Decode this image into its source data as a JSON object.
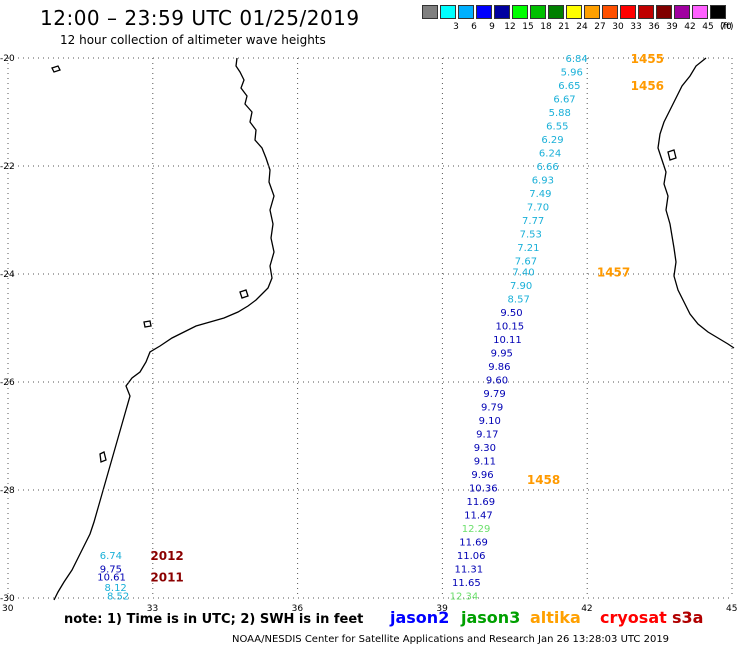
{
  "title": "12:00 – 23:59 UTC 01/25/2019",
  "subtitle": "12 hour collection of altimeter wave heights",
  "scale": {
    "labels": [
      "",
      "3",
      "6",
      "9",
      "12",
      "15",
      "18",
      "21",
      "24",
      "27",
      "30",
      "33",
      "36",
      "39",
      "42",
      "45",
      "70"
    ],
    "colors": [
      "#808080",
      "#00ffff",
      "#00b0ff",
      "#0000ff",
      "#0000a0",
      "#00ff00",
      "#00c000",
      "#008000",
      "#ffff00",
      "#ffa000",
      "#ff5000",
      "#ff0000",
      "#c00000",
      "#800000",
      "#a000a0",
      "#ff60ff",
      "#000000"
    ],
    "unit": "(ft)"
  },
  "axes": {
    "lon_labels": [
      "30",
      "33",
      "36",
      "39",
      "42",
      "45"
    ],
    "lat_labels": [
      "-20",
      "-22",
      "-24",
      "-26",
      "-28",
      "-30"
    ]
  },
  "footer": {
    "note": "note: 1) Time is in UTC; 2) SWH is in feet",
    "sat1": "jason2",
    "sat2": "jason3",
    "sat3": "altika",
    "sat4": "cryosat",
    "sat5": "s3a",
    "credit": "NOAA/NESDIS Center for Satellite Applications and Research",
    "stamp": "Jan 26 13:28:03 UTC 2019"
  },
  "colors": {
    "light_blue": "#1ab0d8",
    "dark_blue": "#0000b4",
    "green": "#6ce06c",
    "orange": "#ff9a00",
    "dark_red": "#8b0000",
    "grid": "#555555"
  },
  "track_labels": [
    {
      "text": "1455",
      "lon": 42.9,
      "lat": -20.0,
      "color": "orange"
    },
    {
      "text": "1456",
      "lon": 42.9,
      "lat": -20.5,
      "color": "orange"
    },
    {
      "text": "1457",
      "lon": 42.2,
      "lat": -23.95,
      "color": "orange"
    },
    {
      "text": "1458",
      "lon": 40.75,
      "lat": -27.8,
      "color": "orange"
    },
    {
      "text": "2012",
      "lon": 32.95,
      "lat": -29.2,
      "color": "dark_red"
    },
    {
      "text": "2011",
      "lon": 32.95,
      "lat": -29.6,
      "color": "dark_red"
    }
  ],
  "measurements": [
    {
      "v": "6.84",
      "lon": 41.55,
      "lat": -20.0,
      "color": "light_blue"
    },
    {
      "v": "5.96",
      "lon": 41.45,
      "lat": -20.25,
      "color": "light_blue"
    },
    {
      "v": "6.65",
      "lon": 41.4,
      "lat": -20.5,
      "color": "light_blue"
    },
    {
      "v": "6.67",
      "lon": 41.3,
      "lat": -20.75,
      "color": "light_blue"
    },
    {
      "v": "5.88",
      "lon": 41.2,
      "lat": -21.0,
      "color": "light_blue"
    },
    {
      "v": "6.55",
      "lon": 41.15,
      "lat": -21.25,
      "color": "light_blue"
    },
    {
      "v": "6.29",
      "lon": 41.05,
      "lat": -21.5,
      "color": "light_blue"
    },
    {
      "v": "6.24",
      "lon": 41.0,
      "lat": -21.75,
      "color": "light_blue"
    },
    {
      "v": "6.66",
      "lon": 40.95,
      "lat": -22.0,
      "color": "light_blue"
    },
    {
      "v": "6.93",
      "lon": 40.85,
      "lat": -22.25,
      "color": "light_blue"
    },
    {
      "v": "7.49",
      "lon": 40.8,
      "lat": -22.5,
      "color": "light_blue"
    },
    {
      "v": "7.70",
      "lon": 40.75,
      "lat": -22.75,
      "color": "light_blue"
    },
    {
      "v": "7.77",
      "lon": 40.65,
      "lat": -23.0,
      "color": "light_blue"
    },
    {
      "v": "7.53",
      "lon": 40.6,
      "lat": -23.25,
      "color": "light_blue"
    },
    {
      "v": "7.21",
      "lon": 40.55,
      "lat": -23.5,
      "color": "light_blue"
    },
    {
      "v": "7.67",
      "lon": 40.5,
      "lat": -23.75,
      "color": "light_blue"
    },
    {
      "v": "7.40",
      "lon": 40.45,
      "lat": -23.95,
      "color": "light_blue"
    },
    {
      "v": "7.90",
      "lon": 40.4,
      "lat": -24.2,
      "color": "light_blue"
    },
    {
      "v": "8.57",
      "lon": 40.35,
      "lat": -24.45,
      "color": "light_blue"
    },
    {
      "v": "9.50",
      "lon": 40.2,
      "lat": -24.7,
      "color": "dark_blue"
    },
    {
      "v": "10.15",
      "lon": 40.1,
      "lat": -24.95,
      "color": "dark_blue"
    },
    {
      "v": "10.11",
      "lon": 40.05,
      "lat": -25.2,
      "color": "dark_blue"
    },
    {
      "v": "9.95",
      "lon": 40.0,
      "lat": -25.45,
      "color": "dark_blue"
    },
    {
      "v": "9.86",
      "lon": 39.95,
      "lat": -25.7,
      "color": "dark_blue"
    },
    {
      "v": "9.60",
      "lon": 39.9,
      "lat": -25.95,
      "color": "dark_blue"
    },
    {
      "v": "9.79",
      "lon": 39.85,
      "lat": -26.2,
      "color": "dark_blue"
    },
    {
      "v": "9.79",
      "lon": 39.8,
      "lat": -26.45,
      "color": "dark_blue"
    },
    {
      "v": "9.10",
      "lon": 39.75,
      "lat": -26.7,
      "color": "dark_blue"
    },
    {
      "v": "9.17",
      "lon": 39.7,
      "lat": -26.95,
      "color": "dark_blue"
    },
    {
      "v": "9.30",
      "lon": 39.65,
      "lat": -27.2,
      "color": "dark_blue"
    },
    {
      "v": "9.11",
      "lon": 39.65,
      "lat": -27.45,
      "color": "dark_blue"
    },
    {
      "v": "9.96",
      "lon": 39.6,
      "lat": -27.7,
      "color": "dark_blue"
    },
    {
      "v": "10.36",
      "lon": 39.55,
      "lat": -27.95,
      "color": "dark_blue"
    },
    {
      "v": "11.69",
      "lon": 39.5,
      "lat": -28.2,
      "color": "dark_blue"
    },
    {
      "v": "11.47",
      "lon": 39.45,
      "lat": -28.45,
      "color": "dark_blue"
    },
    {
      "v": "12.29",
      "lon": 39.4,
      "lat": -28.7,
      "color": "green"
    },
    {
      "v": "11.69",
      "lon": 39.35,
      "lat": -28.95,
      "color": "dark_blue"
    },
    {
      "v": "11.06",
      "lon": 39.3,
      "lat": -29.2,
      "color": "dark_blue"
    },
    {
      "v": "11.31",
      "lon": 39.25,
      "lat": -29.45,
      "color": "dark_blue"
    },
    {
      "v": "11.65",
      "lon": 39.2,
      "lat": -29.7,
      "color": "dark_blue"
    },
    {
      "v": "12.34",
      "lon": 39.15,
      "lat": -29.95,
      "color": "green"
    },
    {
      "v": "6.74",
      "lon": 31.9,
      "lat": -29.2,
      "color": "light_blue"
    },
    {
      "v": "9.75",
      "lon": 31.9,
      "lat": -29.45,
      "color": "dark_blue"
    },
    {
      "v": "10.61",
      "lon": 31.85,
      "lat": -29.6,
      "color": "dark_blue"
    },
    {
      "v": "8.12",
      "lon": 32.0,
      "lat": -29.8,
      "color": "light_blue"
    },
    {
      "v": "8.52",
      "lon": 32.05,
      "lat": -29.95,
      "color": "light_blue"
    }
  ]
}
